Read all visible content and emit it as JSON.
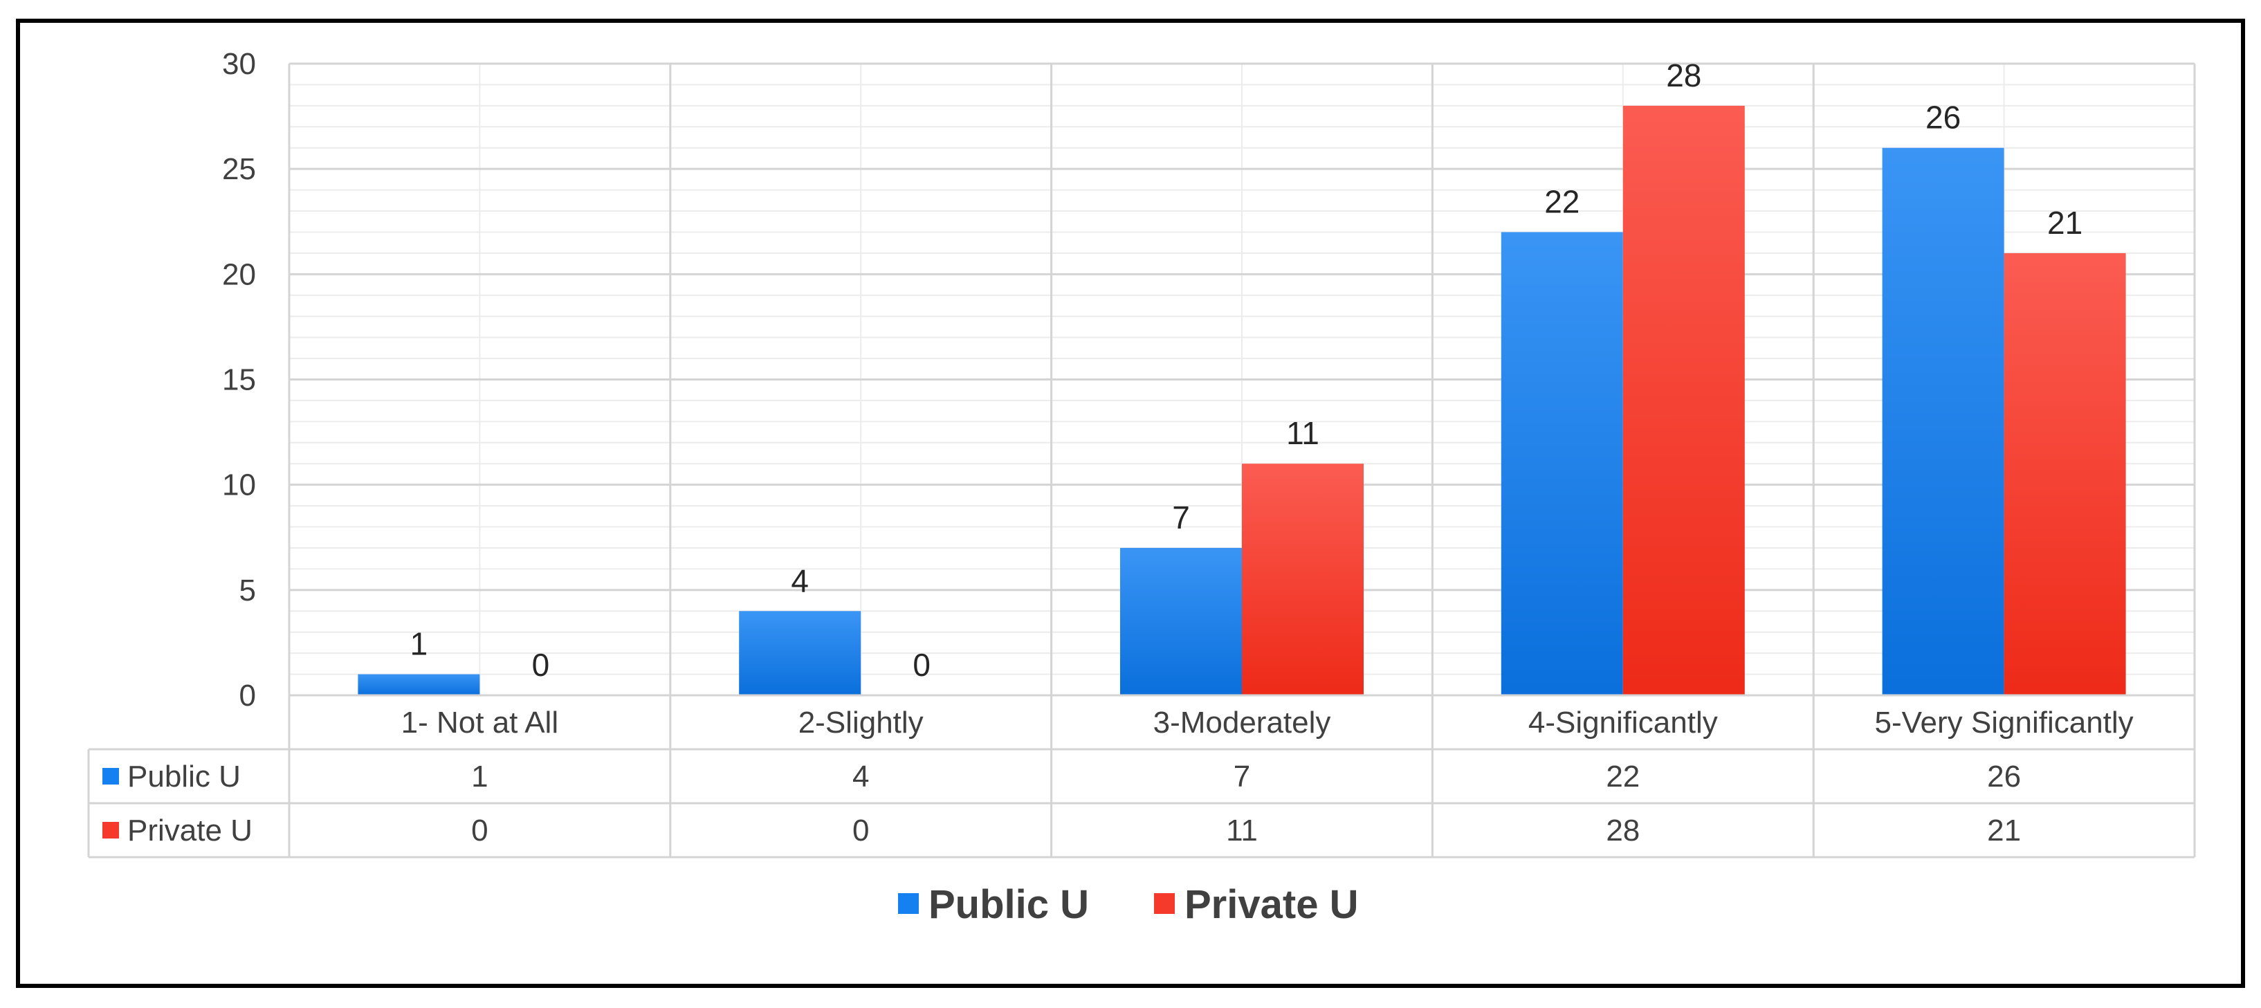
{
  "chart_data": {
    "type": "bar",
    "categories": [
      "1- Not at All",
      "2-Slightly",
      "3-Moderately",
      "4-Significantly",
      "5-Very Significantly"
    ],
    "series": [
      {
        "name": "Public U",
        "values": [
          1,
          4,
          7,
          22,
          26
        ]
      },
      {
        "name": "Private U",
        "values": [
          0,
          0,
          11,
          28,
          21
        ]
      }
    ],
    "ylim": [
      0,
      30
    ],
    "yticks": [
      0,
      5,
      10,
      15,
      20,
      25,
      30
    ],
    "grid": true,
    "data_table": true,
    "legend_position": "bottom",
    "colors": {
      "Public U": "#1580f0",
      "Private U": "#f53a2c"
    }
  }
}
